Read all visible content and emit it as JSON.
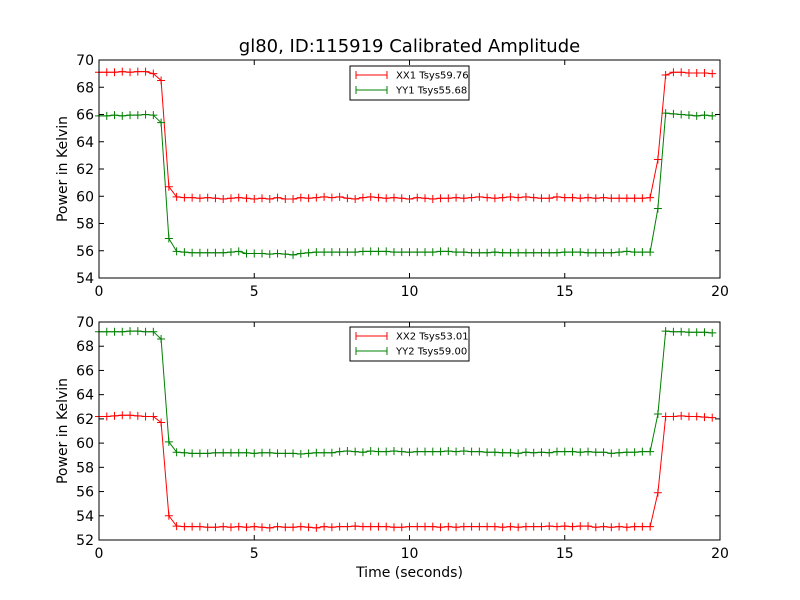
{
  "chart_data": [
    {
      "type": "line",
      "title": "gl80, ID:115919 Calibrated Amplitude",
      "xlabel": "",
      "ylabel": "Power in Kelvin",
      "xlim": [
        0,
        20
      ],
      "ylim": [
        54,
        70
      ],
      "xticks": [
        0,
        5,
        10,
        15,
        20
      ],
      "yticks": [
        54,
        56,
        58,
        60,
        62,
        64,
        66,
        68,
        70
      ],
      "grid": false,
      "legend_placement": "top-center",
      "x_step": 0.25,
      "series": [
        {
          "name": "XX1 Tsys59.76",
          "color": "#ff0000",
          "values": [
            69.1,
            69.1,
            69.1,
            69.15,
            69.1,
            69.15,
            69.15,
            69.0,
            68.5,
            60.7,
            59.95,
            59.9,
            59.9,
            59.85,
            59.9,
            59.85,
            59.8,
            59.85,
            59.9,
            59.85,
            59.8,
            59.85,
            59.8,
            59.9,
            59.8,
            59.8,
            59.9,
            59.85,
            59.9,
            59.95,
            59.9,
            59.95,
            59.85,
            59.8,
            59.9,
            59.95,
            59.9,
            59.85,
            59.9,
            59.85,
            59.8,
            59.9,
            59.85,
            59.8,
            59.85,
            59.85,
            59.9,
            59.85,
            59.9,
            59.95,
            59.9,
            59.85,
            59.9,
            59.95,
            59.9,
            59.95,
            59.9,
            59.85,
            59.85,
            59.95,
            59.9,
            59.9,
            59.85,
            59.9,
            59.85,
            59.9,
            59.85,
            59.85,
            59.85,
            59.85,
            59.85,
            59.9,
            62.7,
            68.9,
            69.1,
            69.1,
            69.05,
            69.05,
            69.05,
            69.0
          ]
        },
        {
          "name": "YY1 Tsys55.68",
          "color": "#008000",
          "values": [
            65.9,
            65.9,
            65.95,
            65.9,
            65.95,
            65.95,
            66.0,
            65.95,
            65.4,
            56.9,
            55.95,
            55.9,
            55.85,
            55.85,
            55.85,
            55.85,
            55.85,
            55.9,
            55.95,
            55.8,
            55.8,
            55.8,
            55.75,
            55.8,
            55.75,
            55.7,
            55.8,
            55.85,
            55.9,
            55.9,
            55.9,
            55.9,
            55.9,
            55.9,
            55.95,
            55.95,
            55.95,
            55.95,
            55.9,
            55.9,
            55.9,
            55.9,
            55.9,
            55.9,
            55.95,
            55.95,
            55.9,
            55.9,
            55.85,
            55.85,
            55.85,
            55.9,
            55.85,
            55.85,
            55.85,
            55.85,
            55.85,
            55.85,
            55.85,
            55.85,
            55.9,
            55.9,
            55.9,
            55.85,
            55.85,
            55.85,
            55.85,
            55.9,
            55.95,
            55.9,
            55.9,
            55.9,
            59.1,
            66.1,
            66.05,
            66.0,
            65.95,
            65.9,
            65.95,
            65.9
          ]
        }
      ]
    },
    {
      "type": "line",
      "title": "",
      "xlabel": "Time (seconds)",
      "ylabel": "Power in Kelvin",
      "xlim": [
        0,
        20
      ],
      "ylim": [
        52,
        70
      ],
      "xticks": [
        0,
        5,
        10,
        15,
        20
      ],
      "yticks": [
        52,
        54,
        56,
        58,
        60,
        62,
        64,
        66,
        68,
        70
      ],
      "grid": false,
      "legend_placement": "top-center",
      "x_step": 0.25,
      "series": [
        {
          "name": "XX2 Tsys53.01",
          "color": "#ff0000",
          "values": [
            62.2,
            62.2,
            62.25,
            62.3,
            62.3,
            62.25,
            62.2,
            62.2,
            61.7,
            54.0,
            53.15,
            53.1,
            53.1,
            53.1,
            53.05,
            53.05,
            53.1,
            53.05,
            53.1,
            53.05,
            53.1,
            53.05,
            53.0,
            53.1,
            53.05,
            53.05,
            53.1,
            53.05,
            53.0,
            53.1,
            53.05,
            53.1,
            53.1,
            53.15,
            53.1,
            53.1,
            53.1,
            53.1,
            53.05,
            53.05,
            53.1,
            53.1,
            53.1,
            53.1,
            53.05,
            53.1,
            53.05,
            53.1,
            53.1,
            53.1,
            53.1,
            53.1,
            53.05,
            53.1,
            53.05,
            53.1,
            53.1,
            53.1,
            53.15,
            53.1,
            53.15,
            53.1,
            53.15,
            53.15,
            53.05,
            53.1,
            53.05,
            53.1,
            53.05,
            53.1,
            53.1,
            53.1,
            55.9,
            62.2,
            62.2,
            62.25,
            62.2,
            62.2,
            62.15,
            62.1
          ]
        },
        {
          "name": "YY2 Tsys59.00",
          "color": "#008000",
          "values": [
            69.2,
            69.2,
            69.2,
            69.2,
            69.25,
            69.25,
            69.2,
            69.2,
            68.6,
            60.1,
            59.25,
            59.2,
            59.15,
            59.15,
            59.15,
            59.2,
            59.2,
            59.2,
            59.2,
            59.2,
            59.15,
            59.2,
            59.2,
            59.15,
            59.15,
            59.15,
            59.1,
            59.15,
            59.2,
            59.2,
            59.2,
            59.3,
            59.35,
            59.3,
            59.25,
            59.35,
            59.3,
            59.3,
            59.35,
            59.3,
            59.25,
            59.3,
            59.3,
            59.3,
            59.3,
            59.35,
            59.3,
            59.35,
            59.3,
            59.3,
            59.25,
            59.25,
            59.2,
            59.2,
            59.15,
            59.25,
            59.2,
            59.25,
            59.2,
            59.3,
            59.3,
            59.3,
            59.25,
            59.3,
            59.25,
            59.25,
            59.15,
            59.2,
            59.25,
            59.25,
            59.3,
            59.3,
            62.4,
            69.25,
            69.2,
            69.2,
            69.15,
            69.15,
            69.15,
            69.1
          ]
        }
      ]
    }
  ]
}
